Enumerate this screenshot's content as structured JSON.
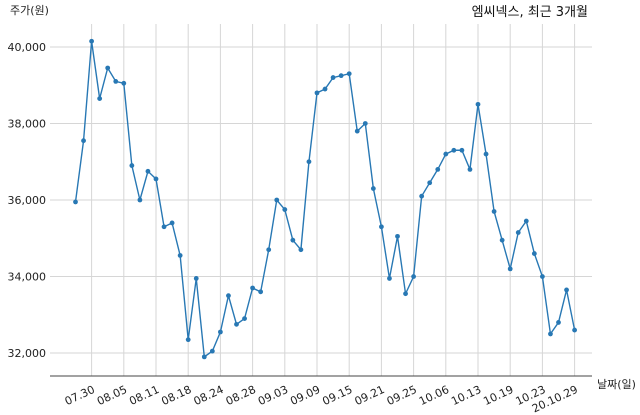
{
  "chart_data": {
    "type": "line",
    "title": "엠씨넥스, 최근 3개월",
    "xlabel": "날짜(일)",
    "ylabel": "주가(원)",
    "ylim": [
      31400,
      40600
    ],
    "y_ticks": [
      "32,000",
      "34,000",
      "36,000",
      "38,000",
      "40,000"
    ],
    "y_tick_values": [
      32000,
      34000,
      36000,
      38000,
      40000
    ],
    "x_tick_labels": [
      "07.30",
      "08.05",
      "08.11",
      "08.18",
      "08.24",
      "08.28",
      "09.03",
      "09.09",
      "09.15",
      "09.21",
      "09.25",
      "10.06",
      "10.13",
      "10.19",
      "10.23",
      "20.10.29"
    ],
    "x_tick_indices": [
      2,
      6,
      10,
      14,
      18,
      22,
      26,
      30,
      34,
      38,
      42,
      46,
      50,
      54,
      58,
      62
    ],
    "grid": true,
    "line_color": "#2878b4",
    "series": [
      {
        "values": [
          35950,
          37550,
          40150,
          38650,
          39450,
          39100,
          39050,
          36900,
          36000,
          36750,
          36550,
          35300,
          35400,
          34550,
          32350,
          33950,
          31900,
          32050,
          32550,
          33500,
          32750,
          32900,
          33700,
          33600,
          34700,
          36000,
          35750,
          34950,
          34700,
          37000,
          38800,
          38900,
          39200,
          39250,
          39300,
          37800,
          38000,
          36300,
          35300,
          33950,
          35050,
          33550,
          34000,
          36100,
          36450,
          36800,
          37200,
          37300,
          37300,
          36800,
          38500,
          37200,
          35700,
          34950,
          34200,
          35150,
          35450,
          34600,
          34000,
          32500,
          32800,
          33650,
          32600
        ]
      }
    ]
  }
}
